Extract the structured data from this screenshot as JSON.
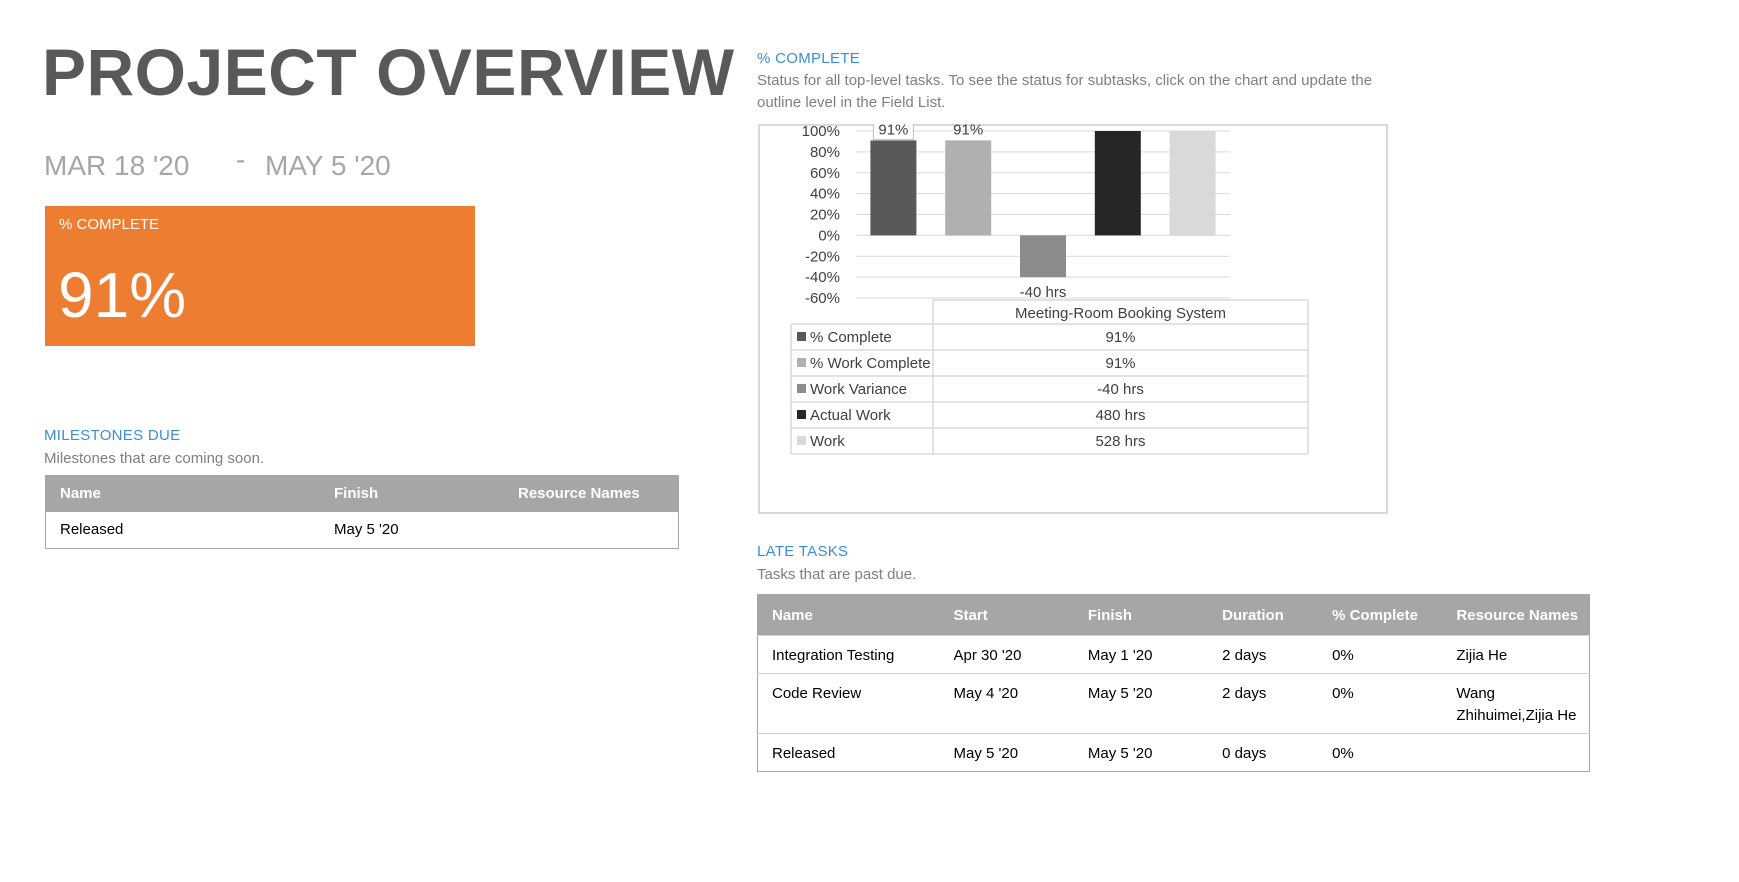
{
  "header": {
    "title": "PROJECT OVERVIEW",
    "start_date": "MAR 18 '20",
    "separator": "-",
    "end_date": "MAY 5 '20"
  },
  "kpi": {
    "label": "% COMPLETE",
    "value": "91%",
    "color": "#ed7d31"
  },
  "milestones": {
    "title": "MILESTONES DUE",
    "subtitle": "Milestones that are coming soon.",
    "columns": [
      "Name",
      "Finish",
      "Resource Names"
    ],
    "rows": [
      [
        "Released",
        "May 5 '20",
        ""
      ]
    ]
  },
  "percent_complete": {
    "title": "% COMPLETE",
    "subtitle_line1": "Status for all top-level tasks. To see the status for subtasks, click on the chart and update the",
    "subtitle_line2": "outline level in the Field List."
  },
  "chart_data": {
    "type": "bar",
    "category": "Meeting-Room Booking System",
    "ylim": [
      -0.6,
      1.0
    ],
    "yticks": [
      "100%",
      "80%",
      "60%",
      "40%",
      "20%",
      "0%",
      "-20%",
      "-40%",
      "-60%"
    ],
    "ytick_values": [
      1.0,
      0.8,
      0.6,
      0.4,
      0.2,
      0.0,
      -0.2,
      -0.4,
      -0.6
    ],
    "grid": true,
    "series": [
      {
        "name": "% Complete",
        "value": 0.91,
        "label": "91%",
        "table_value": "91%",
        "color": "#595959"
      },
      {
        "name": "% Work Complete",
        "value": 0.91,
        "label": "91%",
        "table_value": "91%",
        "color": "#b0b0b0"
      },
      {
        "name": "Work Variance",
        "value": -0.4,
        "label": "-40 hrs",
        "table_value": "-40 hrs",
        "color": "#8c8c8c"
      },
      {
        "name": "Actual Work",
        "value": 1.0,
        "label": "",
        "table_value": "480 hrs",
        "color": "#262626"
      },
      {
        "name": "Work",
        "value": 1.0,
        "label": "",
        "table_value": "528 hrs",
        "color": "#d9d9d9"
      }
    ]
  },
  "late_tasks": {
    "title": "LATE TASKS",
    "subtitle": "Tasks that are past due.",
    "columns": [
      "Name",
      "Start",
      "Finish",
      "Duration",
      "% Complete",
      "Resource Names"
    ],
    "rows": [
      [
        "Integration Testing",
        "Apr 30 '20",
        "May 1 '20",
        "2 days",
        "0%",
        "Zijia He"
      ],
      [
        "Code Review",
        "May 4 '20",
        "May 5 '20",
        "2 days",
        "0%",
        "Wang Zhihuimei,Zijia He"
      ],
      [
        "Released",
        "May 5 '20",
        "May 5 '20",
        "0 days",
        "0%",
        ""
      ]
    ]
  }
}
